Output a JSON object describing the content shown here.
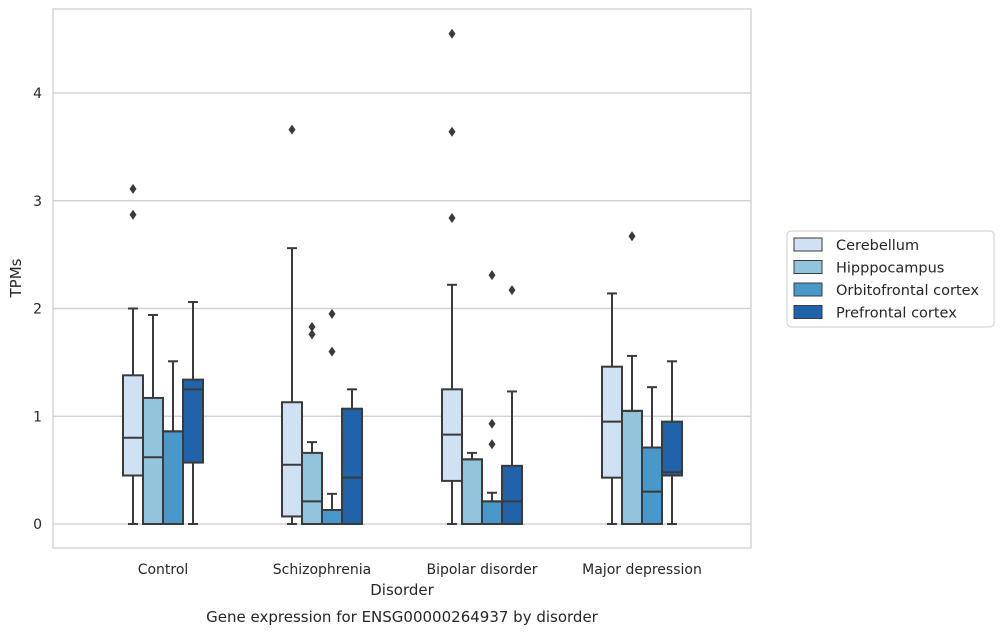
{
  "chart_data": {
    "type": "box",
    "title": "Gene expression for ENSG00000264937 by disorder",
    "xlabel": "Disorder",
    "ylabel": "TPMs",
    "ylim": [
      -0.22,
      4.8
    ],
    "yticks": [
      0,
      1,
      2,
      3,
      4
    ],
    "grid": true,
    "legend_placement": "right",
    "categories": [
      "Control",
      "Schizophrenia",
      "Bipolar disorder",
      "Major depression"
    ],
    "series": [
      {
        "name": "Cerebellum",
        "color": "#cfe1f2",
        "boxes": [
          {
            "whisker_low": 0,
            "q1": 0.45,
            "median": 0.8,
            "q3": 1.38,
            "whisker_high": 2.0,
            "outliers": [
              2.87,
              3.11
            ]
          },
          {
            "whisker_low": 0,
            "q1": 0.07,
            "median": 0.55,
            "q3": 1.13,
            "whisker_high": 2.56,
            "outliers": [
              3.66
            ]
          },
          {
            "whisker_low": 0,
            "q1": 0.4,
            "median": 0.83,
            "q3": 1.25,
            "whisker_high": 2.22,
            "outliers": [
              2.84,
              3.64,
              4.55
            ]
          },
          {
            "whisker_low": 0,
            "q1": 0.43,
            "median": 0.95,
            "q3": 1.46,
            "whisker_high": 2.14,
            "outliers": []
          }
        ]
      },
      {
        "name": "Hipppocampus",
        "color": "#93c4de",
        "boxes": [
          {
            "whisker_low": 0,
            "q1": 0,
            "median": 0.62,
            "q3": 1.17,
            "whisker_high": 1.94,
            "outliers": []
          },
          {
            "whisker_low": 0,
            "q1": 0,
            "median": 0.21,
            "q3": 0.66,
            "whisker_high": 0.76,
            "outliers": [
              1.76,
              1.83
            ]
          },
          {
            "whisker_low": 0,
            "q1": 0,
            "median": 0.6,
            "q3": 0.6,
            "whisker_high": 0.66,
            "outliers": []
          },
          {
            "whisker_low": 0,
            "q1": 0,
            "median": 1.05,
            "q3": 1.05,
            "whisker_high": 1.56,
            "outliers": [
              2.67
            ]
          }
        ]
      },
      {
        "name": "Orbitofrontal cortex",
        "color": "#4a98c9",
        "boxes": [
          {
            "whisker_low": 0,
            "q1": 0,
            "median": 0.86,
            "q3": 0.86,
            "whisker_high": 1.51,
            "outliers": []
          },
          {
            "whisker_low": 0,
            "q1": 0,
            "median": 0.13,
            "q3": 0.13,
            "whisker_high": 0.28,
            "outliers": [
              1.6,
              1.95
            ]
          },
          {
            "whisker_low": 0,
            "q1": 0,
            "median": 0.21,
            "q3": 0.21,
            "whisker_high": 0.29,
            "outliers": [
              0.74,
              0.93,
              2.31
            ]
          },
          {
            "whisker_low": 0,
            "q1": 0,
            "median": 0.3,
            "q3": 0.71,
            "whisker_high": 1.27,
            "outliers": []
          }
        ]
      },
      {
        "name": "Prefrontal cortex",
        "color": "#2163aa",
        "boxes": [
          {
            "whisker_low": 0,
            "q1": 0.57,
            "median": 1.25,
            "q3": 1.34,
            "whisker_high": 2.06,
            "outliers": []
          },
          {
            "whisker_low": 0,
            "q1": 0,
            "median": 0.43,
            "q3": 1.07,
            "whisker_high": 1.25,
            "outliers": []
          },
          {
            "whisker_low": 0,
            "q1": 0,
            "median": 0.21,
            "q3": 0.54,
            "whisker_high": 1.23,
            "outliers": [
              2.17
            ]
          },
          {
            "whisker_low": 0,
            "q1": 0.45,
            "median": 0.48,
            "q3": 0.95,
            "whisker_high": 1.51,
            "outliers": []
          }
        ]
      }
    ]
  }
}
